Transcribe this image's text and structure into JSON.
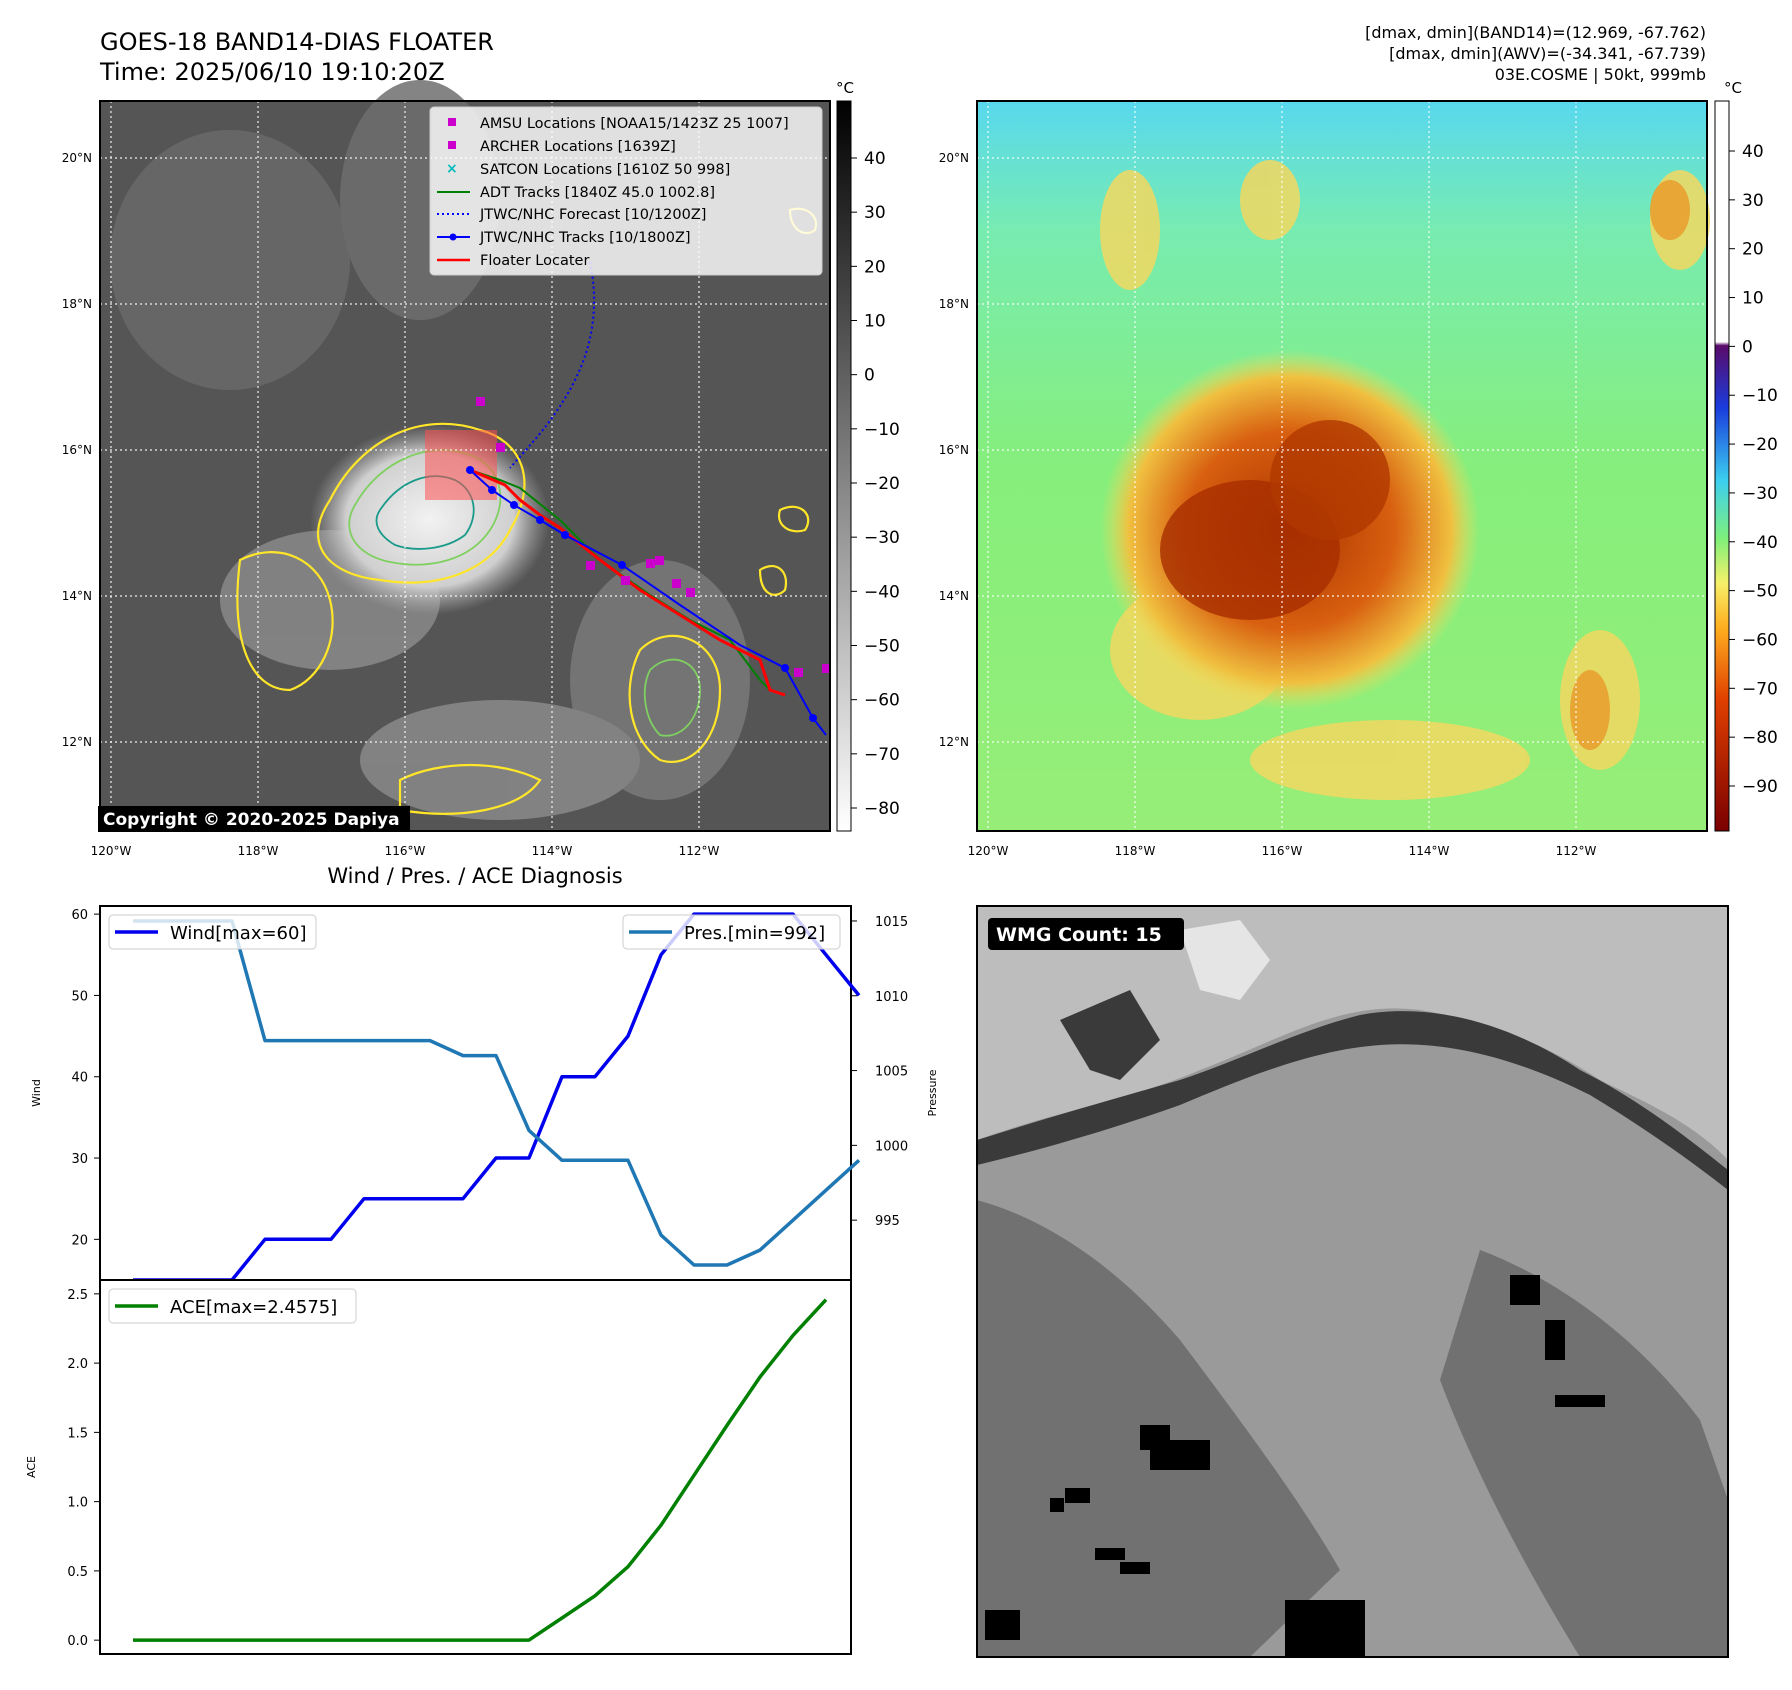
{
  "header": {
    "title": "GOES-18 BAND14-DIAS FLOATER",
    "time": "Time: 2025/06/10 19:10:20Z",
    "right_lines": [
      "[dmax, dmin](BAND14)=(12.969, -67.762)",
      "[dmax, dmin](AWV)=(-34.341, -67.739)",
      "03E.COSME | 50kt, 999mb"
    ]
  },
  "colors": {
    "amsu": "#cc00cc",
    "archer": "#cc00cc",
    "satcon": "#00bbbb",
    "adt": "#008000",
    "forecast": "#0000ff",
    "track": "#0000ff",
    "floater": "#ff0000",
    "wind": "#0000ee",
    "pressure": "#1f77b4",
    "ace": "#008000",
    "cold_contour": "#ffe629",
    "mid_contour": "#7fd060",
    "core_contour": "#1a9a8a"
  },
  "map_panels": {
    "lon_ticks": [
      "120°W",
      "118°W",
      "116°W",
      "114°W",
      "112°W"
    ],
    "lat_ticks": [
      "20°N",
      "18°N",
      "16°N",
      "14°N",
      "12°N"
    ],
    "copyright": "Copyright © 2020-2025 Dapiya"
  },
  "legend": {
    "items": [
      {
        "label": "AMSU Locations [NOAA15/1423Z 25 1007]",
        "marker": "square"
      },
      {
        "label": "ARCHER Locations [1639Z]",
        "marker": "square"
      },
      {
        "label": "SATCON Locations [1610Z 50 998]",
        "marker": "x"
      },
      {
        "label": "ADT Tracks [1840Z 45.0 1002.8]",
        "marker": "line"
      },
      {
        "label": "JTWC/NHC Forecast [10/1200Z]",
        "marker": "dotted"
      },
      {
        "label": "JTWC/NHC Tracks [10/1800Z]",
        "marker": "line-dot"
      },
      {
        "label": "Floater Locater",
        "marker": "line"
      }
    ]
  },
  "colorbars": {
    "unit": "°C",
    "ir_ticks": [
      "40",
      "30",
      "20",
      "10",
      "0",
      "−10",
      "−20",
      "−30",
      "−40",
      "−50",
      "−60",
      "−70",
      "−80"
    ],
    "dias_ticks": [
      "40",
      "30",
      "20",
      "10",
      "0",
      "−10",
      "−20",
      "−30",
      "−40",
      "−50",
      "−60",
      "−70",
      "−80",
      "−90"
    ]
  },
  "wmg": {
    "label": "WMG Count: 15"
  },
  "chart_data": [
    {
      "type": "line",
      "title": "Wind / Pres. / ACE Diagnosis",
      "ylabel": "Wind",
      "ylabel_right": "Pressure",
      "ylim": [
        15,
        61
      ],
      "ylim_right": [
        991,
        1016
      ],
      "y_ticks": [
        "20",
        "30",
        "40",
        "50",
        "60"
      ],
      "y_ticks_right": [
        "995",
        "1000",
        "1005",
        "1010",
        "1015"
      ],
      "grid": false,
      "series": [
        {
          "name": "Wind[max=60]",
          "axis": "left",
          "values": [
            15,
            15,
            15,
            15,
            20,
            20,
            20,
            25,
            25,
            25,
            25,
            30,
            30,
            40,
            40,
            45,
            55,
            60,
            60,
            60,
            60,
            55,
            50
          ]
        },
        {
          "name": "Pres.[min=992]",
          "axis": "right",
          "values": [
            1015,
            1015,
            1015,
            1015,
            1007,
            1007,
            1007,
            1007,
            1007,
            1007,
            1006,
            1006,
            1001,
            999,
            999,
            999,
            994,
            992,
            992,
            993,
            995,
            997,
            999
          ]
        }
      ]
    },
    {
      "type": "line",
      "ylabel": "ACE",
      "ylim": [
        -0.1,
        2.6
      ],
      "y_ticks": [
        "0.0",
        "0.5",
        "1.0",
        "1.5",
        "2.0",
        "2.5"
      ],
      "grid": false,
      "series": [
        {
          "name": "ACE[max=2.4575]",
          "values": [
            0,
            0,
            0,
            0,
            0,
            0,
            0,
            0,
            0,
            0,
            0,
            0,
            0,
            0.16,
            0.32,
            0.53,
            0.83,
            1.19,
            1.55,
            1.9,
            2.2,
            2.4575
          ]
        }
      ]
    }
  ]
}
